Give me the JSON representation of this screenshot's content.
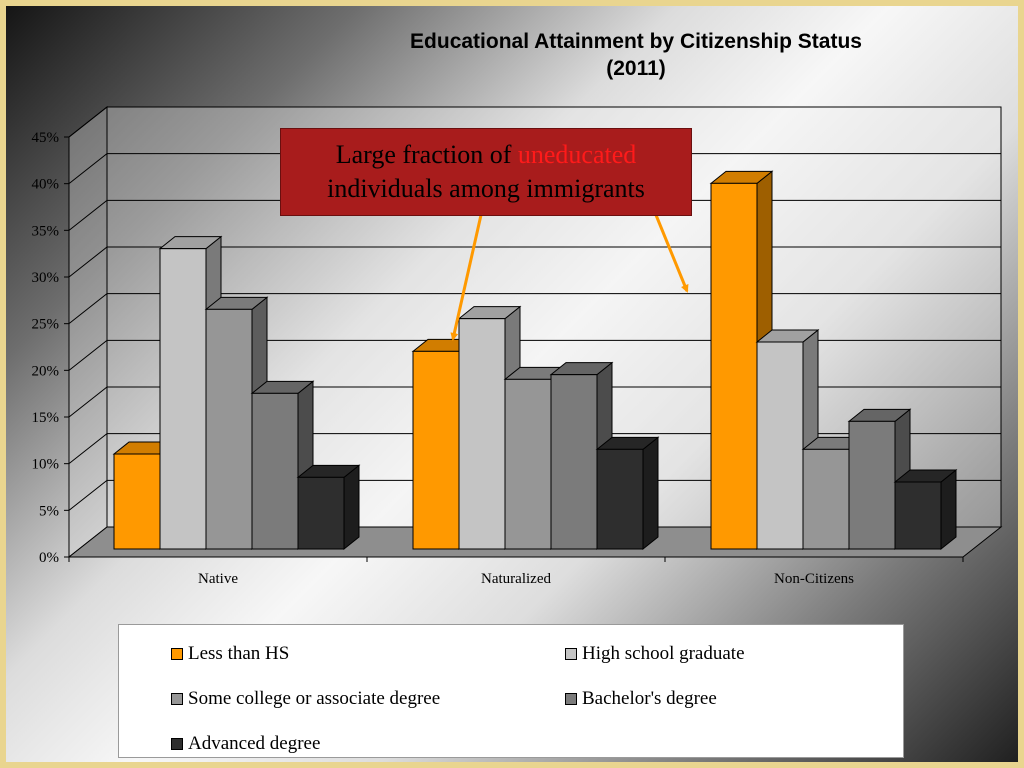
{
  "chart_data": {
    "type": "bar",
    "title": "Educational Attainment by Citizenship Status",
    "subtitle": "(2011)",
    "categories": [
      "Native",
      "Naturalized",
      "Non-Citizens"
    ],
    "series": [
      {
        "name": "Less than HS",
        "values": [
          12,
          23,
          41
        ],
        "color": "#ff9900"
      },
      {
        "name": "High school graduate",
        "values": [
          34,
          26.5,
          24
        ],
        "color": "#c4c4c4"
      },
      {
        "name": "Some college or associate degree",
        "values": [
          27.5,
          20,
          12.5
        ],
        "color": "#969696"
      },
      {
        "name": "Bachelor's degree",
        "values": [
          18.5,
          20.5,
          15.5
        ],
        "color": "#7b7b7b"
      },
      {
        "name": "Advanced degree",
        "values": [
          9.5,
          12.5,
          9
        ],
        "color": "#2e2e2e"
      }
    ],
    "yticks": [
      "0%",
      "5%",
      "10%",
      "15%",
      "20%",
      "25%",
      "30%",
      "35%",
      "40%",
      "45%"
    ],
    "ylim": [
      0,
      45
    ],
    "grid": true,
    "legend_position": "bottom",
    "annotation": {
      "text_before": "Large fraction of ",
      "highlight": "uneducated",
      "text_after": "individuals among immigrants",
      "highlight_color": "#ff1a1a",
      "box_color": "#a81c1c",
      "arrow_color": "#ff9900"
    }
  }
}
